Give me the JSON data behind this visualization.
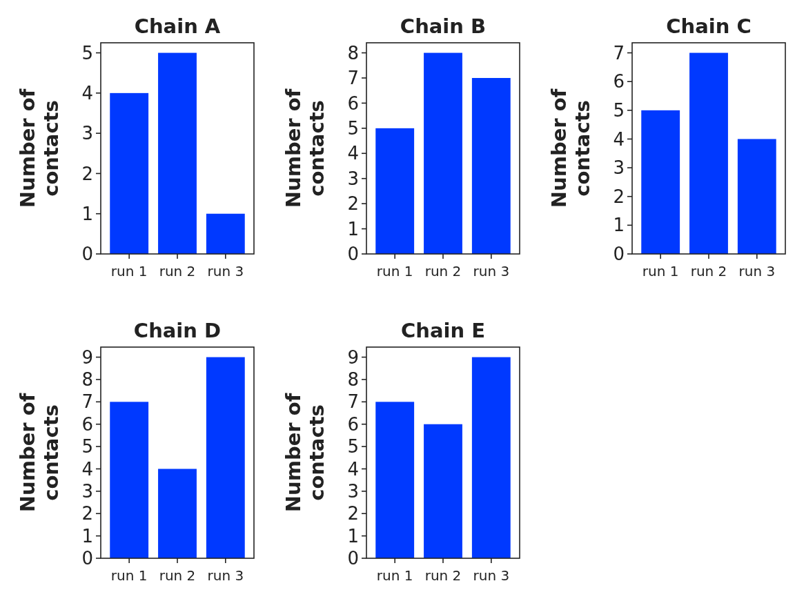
{
  "chart_data": [
    {
      "type": "bar",
      "title": "Chain A",
      "ylabel": "Number of contacts",
      "categories": [
        "run 1",
        "run 2",
        "run 3"
      ],
      "values": [
        4,
        5,
        1
      ],
      "color": "#0039ff",
      "ylim": [
        0,
        5.25
      ],
      "yticks": [
        0,
        1,
        2,
        3,
        4,
        5
      ]
    },
    {
      "type": "bar",
      "title": "Chain B",
      "ylabel": "Number of contacts",
      "categories": [
        "run 1",
        "run 2",
        "run 3"
      ],
      "values": [
        5,
        8,
        7
      ],
      "color": "#0039ff",
      "ylim": [
        0,
        8.4
      ],
      "yticks": [
        0,
        1,
        2,
        3,
        4,
        5,
        6,
        7,
        8
      ]
    },
    {
      "type": "bar",
      "title": "Chain C",
      "ylabel": "Number of contacts",
      "categories": [
        "run 1",
        "run 2",
        "run 3"
      ],
      "values": [
        5,
        7,
        4
      ],
      "color": "#0039ff",
      "ylim": [
        0,
        7.35
      ],
      "yticks": [
        0,
        1,
        2,
        3,
        4,
        5,
        6,
        7
      ]
    },
    {
      "type": "bar",
      "title": "Chain D",
      "ylabel": "Number of contacts",
      "categories": [
        "run 1",
        "run 2",
        "run 3"
      ],
      "values": [
        7,
        4,
        9
      ],
      "color": "#0039ff",
      "ylim": [
        0,
        9.45
      ],
      "yticks": [
        0,
        1,
        2,
        3,
        4,
        5,
        6,
        7,
        8,
        9
      ]
    },
    {
      "type": "bar",
      "title": "Chain E",
      "ylabel": "Number of contacts",
      "categories": [
        "run 1",
        "run 2",
        "run 3"
      ],
      "values": [
        7,
        6,
        9
      ],
      "color": "#0039ff",
      "ylim": [
        0,
        9.45
      ],
      "yticks": [
        0,
        1,
        2,
        3,
        4,
        5,
        6,
        7,
        8,
        9
      ]
    }
  ]
}
